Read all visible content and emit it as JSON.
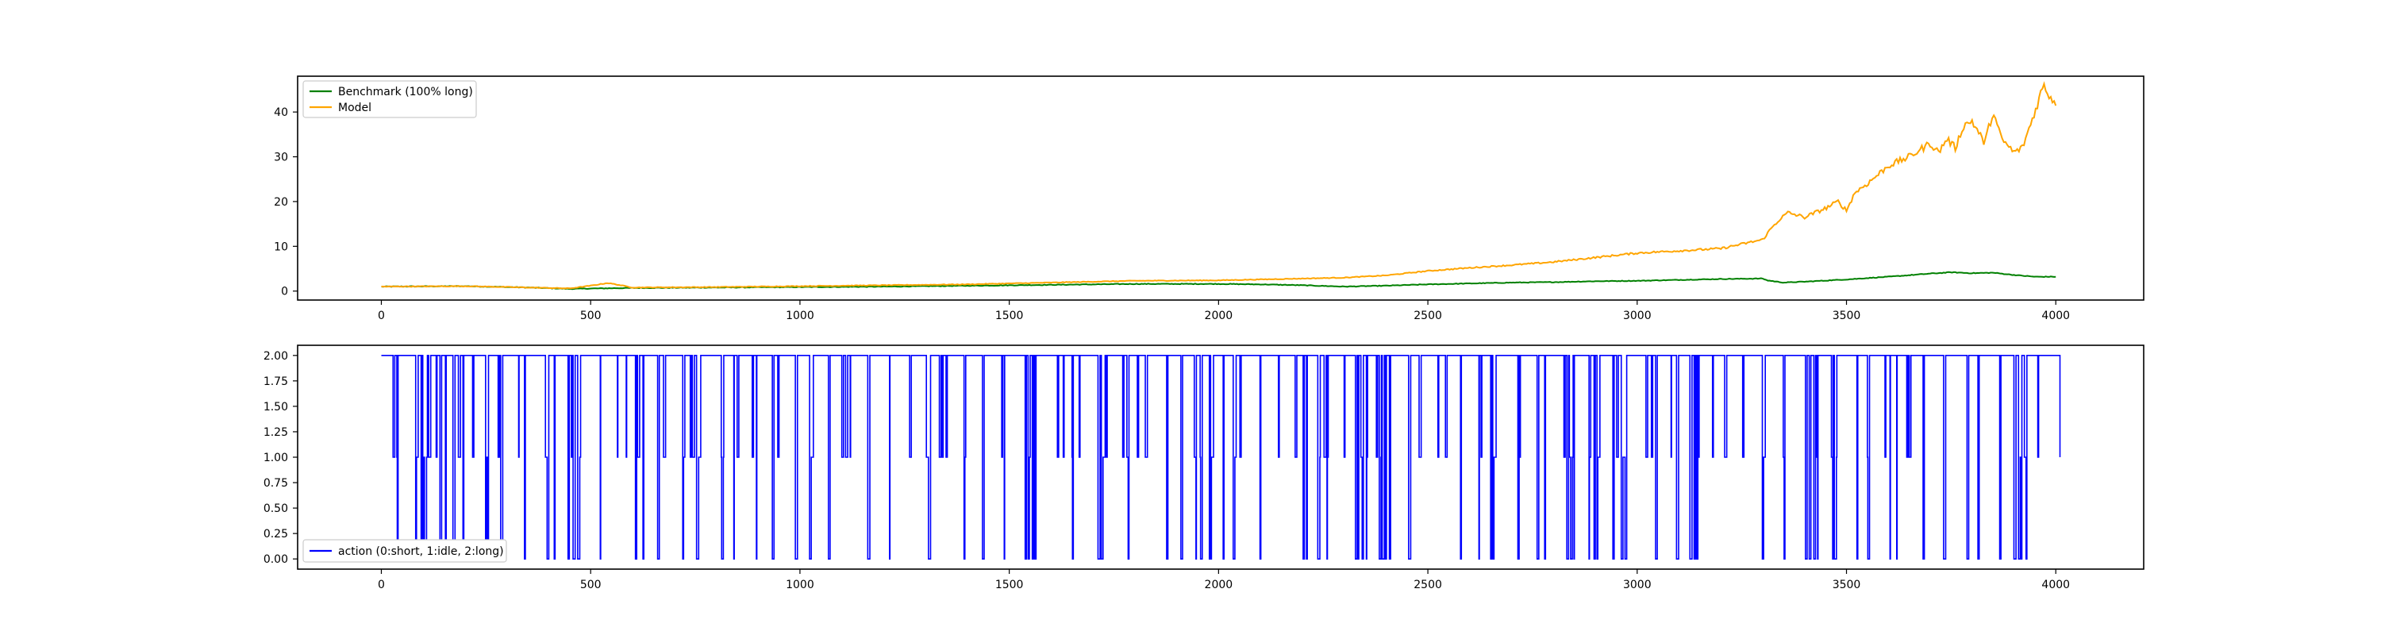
{
  "chart_data": [
    {
      "type": "line",
      "title": "",
      "xlabel": "",
      "ylabel": "",
      "xlim": [
        -200,
        4210
      ],
      "ylim": [
        -2,
        48
      ],
      "x_ticks": [
        0,
        500,
        1000,
        1500,
        2000,
        2500,
        3000,
        3500,
        4000
      ],
      "y_ticks": [
        0,
        10,
        20,
        30,
        40
      ],
      "x_tick_labels": [
        "0",
        "500",
        "1000",
        "1500",
        "2000",
        "2500",
        "3000",
        "3500",
        "4000"
      ],
      "y_tick_labels": [
        "0",
        "10",
        "20",
        "30",
        "40"
      ],
      "grid": false,
      "legend_position": "upper-left",
      "series": [
        {
          "name": "Benchmark (100% long)",
          "color": "#008000",
          "x": [
            0,
            200,
            350,
            450,
            520,
            600,
            800,
            1000,
            1200,
            1400,
            1600,
            1800,
            2000,
            2100,
            2200,
            2300,
            2400,
            2500,
            2600,
            2700,
            2800,
            2900,
            3000,
            3100,
            3200,
            3300,
            3310,
            3350,
            3400,
            3500,
            3600,
            3700,
            3750,
            3800,
            3850,
            3900,
            3950,
            4000
          ],
          "y": [
            1.0,
            1.1,
            0.8,
            0.5,
            0.6,
            0.7,
            0.8,
            0.9,
            1.0,
            1.2,
            1.4,
            1.6,
            1.6,
            1.5,
            1.3,
            1.0,
            1.2,
            1.5,
            1.7,
            1.9,
            2.0,
            2.2,
            2.3,
            2.5,
            2.7,
            2.8,
            2.4,
            1.9,
            2.1,
            2.6,
            3.2,
            3.9,
            4.2,
            4.0,
            4.1,
            3.6,
            3.2,
            3.2
          ]
        },
        {
          "name": "Model",
          "color": "#FFA500",
          "x": [
            0,
            200,
            350,
            450,
            500,
            540,
            560,
            600,
            800,
            1000,
            1200,
            1400,
            1600,
            1800,
            2000,
            2100,
            2200,
            2300,
            2400,
            2500,
            2600,
            2700,
            2800,
            2900,
            3000,
            3100,
            3200,
            3250,
            3300,
            3320,
            3340,
            3360,
            3400,
            3450,
            3480,
            3500,
            3520,
            3550,
            3600,
            3650,
            3700,
            3720,
            3740,
            3760,
            3780,
            3800,
            3830,
            3850,
            3870,
            3900,
            3920,
            3950,
            3970,
            3990,
            4000
          ],
          "y": [
            1.0,
            1.1,
            0.8,
            0.6,
            1.2,
            1.8,
            1.5,
            0.8,
            0.9,
            1.1,
            1.3,
            1.5,
            1.9,
            2.3,
            2.4,
            2.6,
            2.8,
            3.0,
            3.5,
            4.5,
            5.2,
            5.8,
            6.5,
            7.5,
            8.5,
            9.0,
            9.5,
            10.5,
            11.5,
            14.0,
            16.0,
            17.5,
            16.5,
            18.5,
            20.0,
            18.0,
            22.0,
            24.0,
            28.0,
            30.0,
            33.0,
            31.0,
            34.0,
            32.0,
            37.0,
            38.0,
            33.0,
            40.0,
            34.0,
            31.0,
            32.0,
            40.0,
            46.0,
            43.0,
            42.0
          ]
        }
      ]
    },
    {
      "type": "line",
      "title": "",
      "xlabel": "",
      "ylabel": "",
      "xlim": [
        -200,
        4210
      ],
      "ylim": [
        -0.1,
        2.1
      ],
      "x_ticks": [
        0,
        500,
        1000,
        1500,
        2000,
        2500,
        3000,
        3500,
        4000
      ],
      "y_ticks": [
        0.0,
        0.25,
        0.5,
        0.75,
        1.0,
        1.25,
        1.5,
        1.75,
        2.0
      ],
      "x_tick_labels": [
        "0",
        "500",
        "1000",
        "1500",
        "2000",
        "2500",
        "3000",
        "3500",
        "4000"
      ],
      "y_tick_labels": [
        "0.00",
        "0.25",
        "0.50",
        "0.75",
        "1.00",
        "1.25",
        "1.50",
        "1.75",
        "2.00"
      ],
      "grid": false,
      "legend_position": "lower-left",
      "series": [
        {
          "name": "action (0:short, 1:idle, 2:long)",
          "color": "#0000FF",
          "values_range": [
            0,
            4010
          ],
          "levels": [
            0,
            1,
            2
          ],
          "note": "step series switching between 0, 1 and 2; dominant value 2"
        }
      ]
    }
  ]
}
